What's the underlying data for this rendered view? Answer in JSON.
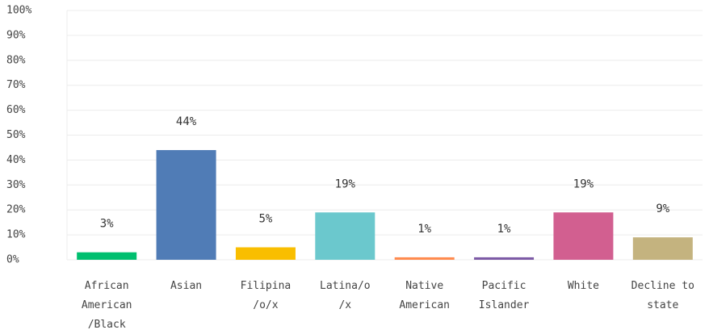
{
  "chart_data": {
    "type": "bar",
    "categories": [
      "African American /Black",
      "Asian",
      "Filipina /o/x",
      "Latina/o /x",
      "Native American",
      "Pacific Islander",
      "White",
      "Decline to state"
    ],
    "values": [
      3,
      44,
      5,
      19,
      1,
      1,
      19,
      9
    ],
    "value_labels": [
      "3%",
      "44%",
      "5%",
      "19%",
      "1%",
      "1%",
      "19%",
      "9%"
    ],
    "colors": [
      "#00bf6f",
      "#507cb6",
      "#f9be00",
      "#6bc8cd",
      "#ff8b4f",
      "#7d5ba6",
      "#d25f90",
      "#c4b37f"
    ],
    "ylim": [
      0,
      100
    ],
    "yticks": [
      {
        "value": 0,
        "label": "0%"
      },
      {
        "value": 10,
        "label": "10%"
      },
      {
        "value": 20,
        "label": "20%"
      },
      {
        "value": 30,
        "label": "30%"
      },
      {
        "value": 40,
        "label": "40%"
      },
      {
        "value": 50,
        "label": "50%"
      },
      {
        "value": 60,
        "label": "60%"
      },
      {
        "value": 70,
        "label": "70%"
      },
      {
        "value": 80,
        "label": "80%"
      },
      {
        "value": 90,
        "label": "90%"
      },
      {
        "value": 100,
        "label": "100%"
      }
    ],
    "grid": true
  }
}
